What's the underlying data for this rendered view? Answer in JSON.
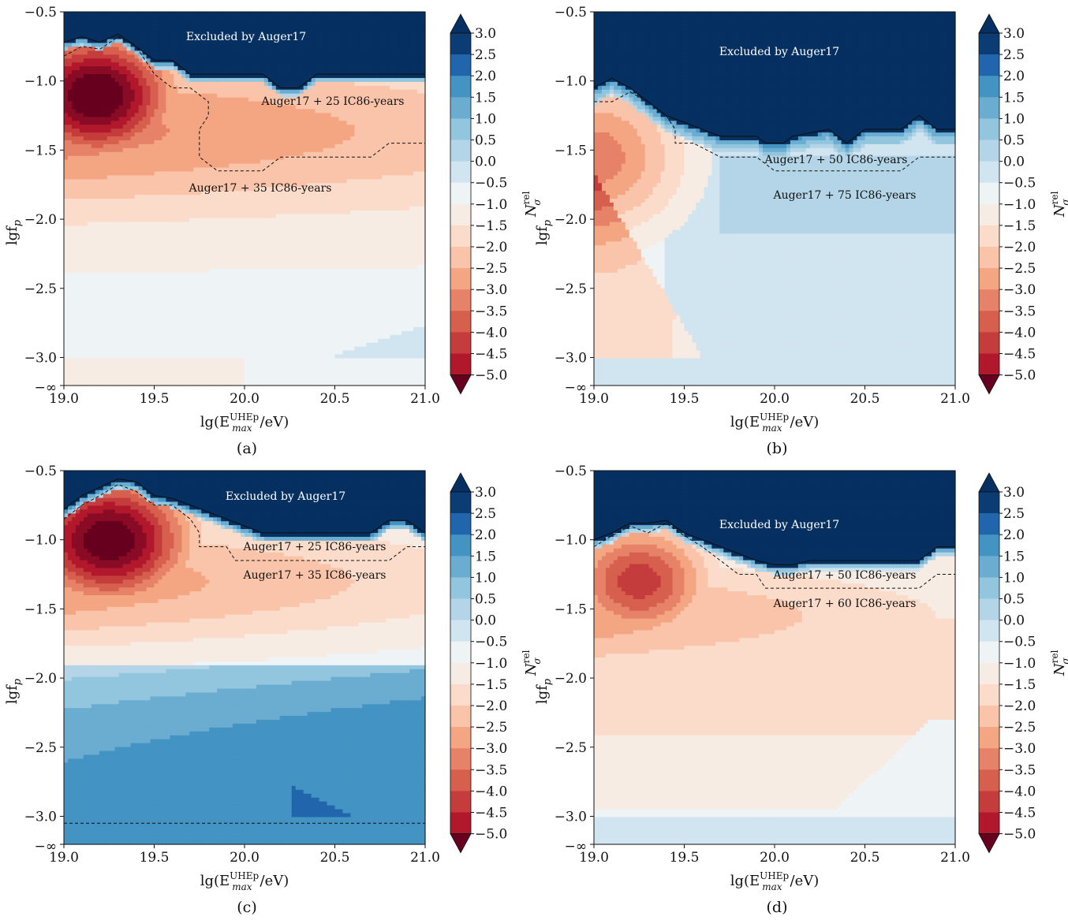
{
  "figure": {
    "colorbar": {
      "levels": [
        -5.0,
        -4.5,
        -4.0,
        -3.5,
        -3.0,
        -2.5,
        -2.0,
        -1.5,
        -1.0,
        -0.5,
        0.0,
        0.5,
        1.0,
        1.5,
        2.0,
        2.5,
        3.0
      ],
      "tick_labels": [
        "3.0",
        "2.5",
        "2.0",
        "1.5",
        "1.0",
        "0.5",
        "0.0",
        "−0.5",
        "−1.0",
        "−1.5",
        "−2.0",
        "−2.5",
        "−3.0",
        "−3.5",
        "−4.0",
        "−4.5",
        "−5.0"
      ],
      "label": "N",
      "label_sup": "rel",
      "label_sub": "σ",
      "colors": [
        "#67001f",
        "#8a0b25",
        "#b2182b",
        "#c43c3c",
        "#d6604d",
        "#e58268",
        "#f4a582",
        "#f9c4a9",
        "#fbdccb",
        "#f7ece4",
        "#eef3f6",
        "#d1e5f0",
        "#b3d5e7",
        "#92c5de",
        "#6bacd1",
        "#4393c3",
        "#2166ac",
        "#0b3c73",
        "#053061"
      ],
      "cmap": "RdBu"
    },
    "x_tick_labels": [
      "19.0",
      "19.5",
      "20.0",
      "20.5",
      "21.0"
    ],
    "y_tick_labels": [
      "−0.5",
      "−1.0",
      "−1.5",
      "−2.0",
      "−2.5",
      "−3.0",
      "−∞"
    ],
    "xlabel_parts": {
      "pre": "lg(E",
      "sup": "UHEp",
      "sub": "max",
      "post": "/eV)"
    },
    "ylabel_parts": {
      "pre": "lgf",
      "sub": "p"
    }
  },
  "chart_data": [
    {
      "type": "heatmap",
      "panel": "(a)",
      "xlim": [
        19.0,
        21.0
      ],
      "ylim": [
        -3.1,
        -0.5
      ],
      "value_label": "N_σ^rel",
      "peak": {
        "x": 19.18,
        "y": -1.08,
        "value": -5.0
      },
      "annotations": [
        "Excluded by Auger17",
        "Auger17 + 25 IC86-years",
        "Auger17 + 35 IC86-years"
      ],
      "exclusion_boundary": [
        [
          19.0,
          -0.72
        ],
        [
          19.1,
          -0.68
        ],
        [
          19.2,
          -0.72
        ],
        [
          19.3,
          -0.66
        ],
        [
          19.4,
          -0.75
        ],
        [
          19.5,
          -0.85
        ],
        [
          19.6,
          -0.85
        ],
        [
          19.7,
          -0.95
        ],
        [
          20.0,
          -0.95
        ],
        [
          20.1,
          -0.95
        ],
        [
          20.2,
          -1.05
        ],
        [
          20.3,
          -1.05
        ],
        [
          20.4,
          -0.95
        ],
        [
          21.0,
          -0.95
        ]
      ],
      "contour_25yr": [
        [
          19.0,
          -0.82
        ],
        [
          19.1,
          -0.75
        ],
        [
          19.2,
          -0.77
        ],
        [
          19.3,
          -0.68
        ],
        [
          19.4,
          -0.75
        ],
        [
          19.5,
          -0.95
        ],
        [
          19.6,
          -1.05
        ],
        [
          19.7,
          -1.05
        ],
        [
          19.8,
          -1.15
        ],
        [
          19.8,
          -1.25
        ],
        [
          19.75,
          -1.35
        ],
        [
          19.75,
          -1.55
        ],
        [
          19.85,
          -1.65
        ],
        [
          20.1,
          -1.65
        ],
        [
          20.2,
          -1.55
        ],
        [
          20.7,
          -1.55
        ],
        [
          20.8,
          -1.45
        ],
        [
          21.0,
          -1.45
        ]
      ],
      "contour_35yr": []
    },
    {
      "type": "heatmap",
      "panel": "(b)",
      "xlim": [
        19.0,
        21.0
      ],
      "ylim": [
        -3.1,
        -0.5
      ],
      "value_label": "N_σ^rel",
      "peak": {
        "x": 19.0,
        "y": -1.55,
        "value": -2.5
      },
      "annotations": [
        "Excluded by Auger17",
        "Auger17 + 50 IC86-years",
        "Auger17 + 75 IC86-years"
      ],
      "exclusion_boundary": [
        [
          19.0,
          -1.05
        ],
        [
          19.1,
          -0.98
        ],
        [
          19.2,
          -1.05
        ],
        [
          19.3,
          -1.15
        ],
        [
          19.4,
          -1.25
        ],
        [
          19.5,
          -1.3
        ],
        [
          19.6,
          -1.35
        ],
        [
          19.7,
          -1.4
        ],
        [
          19.9,
          -1.4
        ],
        [
          19.95,
          -1.45
        ],
        [
          20.05,
          -1.45
        ],
        [
          20.1,
          -1.4
        ],
        [
          20.3,
          -1.35
        ],
        [
          20.4,
          -1.45
        ],
        [
          20.5,
          -1.35
        ],
        [
          20.7,
          -1.35
        ],
        [
          20.8,
          -1.25
        ],
        [
          20.9,
          -1.35
        ],
        [
          21.0,
          -1.35
        ]
      ],
      "contour_50yr": [
        [
          19.0,
          -1.15
        ],
        [
          19.1,
          -1.15
        ],
        [
          19.2,
          -1.08
        ],
        [
          19.3,
          -1.15
        ],
        [
          19.4,
          -1.25
        ],
        [
          19.45,
          -1.35
        ],
        [
          19.45,
          -1.45
        ],
        [
          19.55,
          -1.45
        ],
        [
          19.7,
          -1.55
        ],
        [
          19.9,
          -1.55
        ],
        [
          20.0,
          -1.65
        ],
        [
          20.7,
          -1.65
        ],
        [
          20.8,
          -1.55
        ],
        [
          21.0,
          -1.55
        ]
      ]
    },
    {
      "type": "heatmap",
      "panel": "(c)",
      "xlim": [
        19.0,
        21.0
      ],
      "ylim": [
        -3.1,
        -0.5
      ],
      "value_label": "N_σ^rel",
      "peak": {
        "x": 19.25,
        "y": -1.0,
        "value": -5.0
      },
      "annotations": [
        "Excluded by Auger17",
        "Auger17 + 25 IC86-years",
        "Auger17 + 35 IC86-years"
      ],
      "exclusion_boundary": [
        [
          19.0,
          -0.78
        ],
        [
          19.1,
          -0.68
        ],
        [
          19.2,
          -0.62
        ],
        [
          19.3,
          -0.56
        ],
        [
          19.4,
          -0.58
        ],
        [
          19.5,
          -0.68
        ],
        [
          19.6,
          -0.7
        ],
        [
          19.7,
          -0.75
        ],
        [
          19.8,
          -0.8
        ],
        [
          19.9,
          -0.85
        ],
        [
          20.0,
          -0.9
        ],
        [
          20.1,
          -0.95
        ],
        [
          20.7,
          -0.95
        ],
        [
          20.8,
          -0.86
        ],
        [
          20.9,
          -0.86
        ],
        [
          21.0,
          -0.95
        ]
      ],
      "contour_25yr": [
        [
          19.0,
          -0.85
        ],
        [
          19.1,
          -0.75
        ],
        [
          19.2,
          -0.68
        ],
        [
          19.3,
          -0.6
        ],
        [
          19.4,
          -0.65
        ],
        [
          19.5,
          -0.75
        ],
        [
          19.6,
          -0.75
        ],
        [
          19.7,
          -0.85
        ],
        [
          19.75,
          -0.95
        ],
        [
          19.75,
          -1.05
        ],
        [
          19.9,
          -1.05
        ],
        [
          19.95,
          -1.15
        ],
        [
          20.8,
          -1.15
        ],
        [
          20.9,
          -1.05
        ],
        [
          21.0,
          -1.05
        ]
      ],
      "contour_35yr": [
        [
          19.0,
          -3.05
        ],
        [
          21.0,
          -3.05
        ]
      ]
    },
    {
      "type": "heatmap",
      "panel": "(d)",
      "xlim": [
        19.0,
        21.0
      ],
      "ylim": [
        -3.1,
        -0.5
      ],
      "value_label": "N_σ^rel",
      "peak": {
        "x": 19.25,
        "y": -1.3,
        "value": -3.5
      },
      "annotations": [
        "Excluded by Auger17",
        "Auger17 + 50 IC86-years",
        "Auger17 + 60 IC86-years"
      ],
      "exclusion_boundary": [
        [
          19.0,
          -1.0
        ],
        [
          19.1,
          -0.95
        ],
        [
          19.2,
          -0.88
        ],
        [
          19.3,
          -0.88
        ],
        [
          19.4,
          -0.86
        ],
        [
          19.5,
          -0.95
        ],
        [
          19.6,
          -1.0
        ],
        [
          19.7,
          -1.05
        ],
        [
          19.8,
          -1.1
        ],
        [
          19.9,
          -1.15
        ],
        [
          20.0,
          -1.18
        ],
        [
          20.1,
          -1.18
        ],
        [
          20.2,
          -1.15
        ],
        [
          20.8,
          -1.15
        ],
        [
          20.9,
          -1.05
        ],
        [
          21.0,
          -1.05
        ]
      ],
      "contour_50yr": [
        [
          19.0,
          -1.05
        ],
        [
          19.1,
          -0.97
        ],
        [
          19.2,
          -0.9
        ],
        [
          19.3,
          -0.95
        ],
        [
          19.4,
          -0.88
        ],
        [
          19.5,
          -0.97
        ],
        [
          19.6,
          -1.05
        ],
        [
          19.7,
          -1.15
        ],
        [
          19.8,
          -1.25
        ],
        [
          19.9,
          -1.25
        ],
        [
          19.95,
          -1.35
        ],
        [
          20.8,
          -1.35
        ],
        [
          20.9,
          -1.25
        ],
        [
          21.0,
          -1.25
        ]
      ]
    }
  ]
}
